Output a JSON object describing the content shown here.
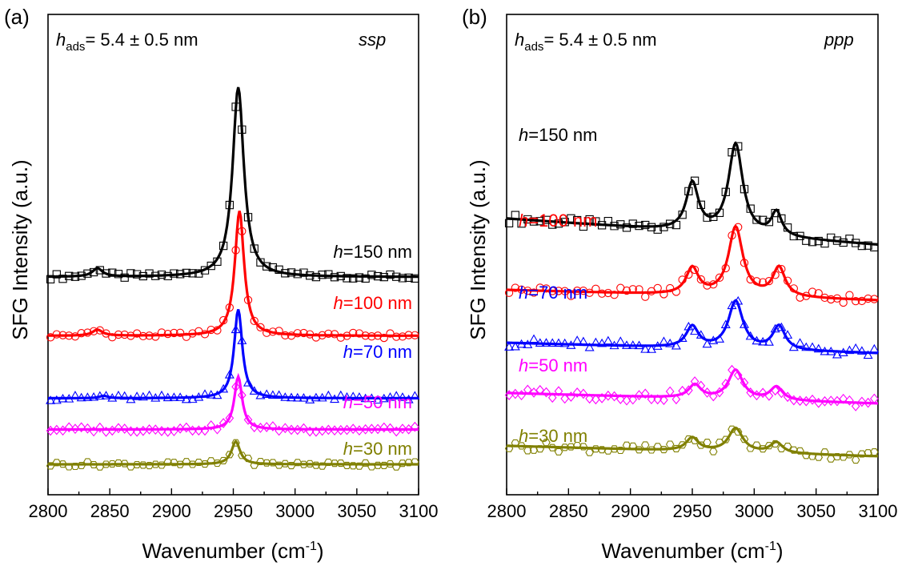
{
  "chart_data": [
    {
      "panel": "(a)",
      "type": "line",
      "polarization": "ssp",
      "annotation_prefix": "h",
      "annotation_sub": "ads",
      "annotation_value": "= 5.4 ± 0.5 nm",
      "xlabel": "Wavenumber (cm",
      "xlabel_sup": "-1",
      "xlabel_end": ")",
      "ylabel": "SFG Intensity (a.u.)",
      "xlim": [
        2800,
        3100
      ],
      "xticks": [
        "2800",
        "2850",
        "2900",
        "2950",
        "3000",
        "3050",
        "3100"
      ],
      "grid": false,
      "series": [
        {
          "name": "h=150 nm",
          "color": "#000000",
          "marker": "square",
          "offset": 7.8,
          "peaks": [
            {
              "x": 2840,
              "a": 0.35,
              "w": 5
            },
            {
              "x": 2954,
              "a": 7.9,
              "w": 5.5
            }
          ]
        },
        {
          "name": "h=100 nm",
          "color": "#ff0000",
          "marker": "circle",
          "offset": 5.35,
          "peaks": [
            {
              "x": 2840,
              "a": 0.25,
              "w": 5
            },
            {
              "x": 2955,
              "a": 5.2,
              "w": 4.5
            }
          ]
        },
        {
          "name": "h=70 nm",
          "color": "#0000ff",
          "marker": "triangle",
          "offset": 2.75,
          "peaks": [
            {
              "x": 2845,
              "a": 0.1,
              "w": 4
            },
            {
              "x": 2954,
              "a": 3.7,
              "w": 4.0
            }
          ]
        },
        {
          "name": "h=50 nm",
          "color": "#ff00ff",
          "marker": "diamond",
          "offset": 1.45,
          "peaks": [
            {
              "x": 2954,
              "a": 2.2,
              "w": 3.8
            }
          ]
        },
        {
          "name": "h=30 nm",
          "color": "#808000",
          "marker": "hexagon",
          "offset": 0.0,
          "peaks": [
            {
              "x": 2952,
              "a": 0.95,
              "w": 4.2
            }
          ]
        }
      ]
    },
    {
      "panel": "(b)",
      "type": "line",
      "polarization": "ppp",
      "annotation_prefix": "h",
      "annotation_sub": "ads",
      "annotation_value": "= 5.4 ± 0.5 nm",
      "xlabel": "Wavenumber (cm",
      "xlabel_sup": "-1",
      "xlabel_end": ")",
      "ylabel": "SFG Intensity (a.u.)",
      "xlim": [
        2800,
        3100
      ],
      "xticks": [
        "2800",
        "2850",
        "2900",
        "2950",
        "3000",
        "3050",
        "3100"
      ],
      "grid": false,
      "series": [
        {
          "name": "h=150 nm",
          "color": "#000000",
          "marker": "square",
          "offset": 8.3,
          "peaks": [
            {
              "x": 2950,
              "a": 1.8,
              "w": 6
            },
            {
              "x": 2985,
              "a": 3.4,
              "w": 7
            },
            {
              "x": 3018,
              "a": 0.9,
              "w": 5
            }
          ]
        },
        {
          "name": "h=100 nm",
          "color": "#ff0000",
          "marker": "circle",
          "offset": 6.2,
          "peaks": [
            {
              "x": 2950,
              "a": 1.0,
              "w": 6
            },
            {
              "x": 2985,
              "a": 2.6,
              "w": 7
            },
            {
              "x": 3020,
              "a": 1.1,
              "w": 6
            }
          ]
        },
        {
          "name": "h=70 nm",
          "color": "#0000ff",
          "marker": "triangle",
          "offset": 4.2,
          "peaks": [
            {
              "x": 2950,
              "a": 0.8,
              "w": 6
            },
            {
              "x": 2985,
              "a": 1.8,
              "w": 7
            },
            {
              "x": 3020,
              "a": 0.9,
              "w": 6
            }
          ]
        },
        {
          "name": "h=50 nm",
          "color": "#ff00ff",
          "marker": "diamond",
          "offset": 2.3,
          "peaks": [
            {
              "x": 2952,
              "a": 0.5,
              "w": 6
            },
            {
              "x": 2985,
              "a": 1.1,
              "w": 7
            },
            {
              "x": 3018,
              "a": 0.5,
              "w": 6
            }
          ]
        },
        {
          "name": "h=30 nm",
          "color": "#808000",
          "marker": "hexagon",
          "offset": 0.3,
          "peaks": [
            {
              "x": 2950,
              "a": 0.5,
              "w": 6
            },
            {
              "x": 2985,
              "a": 0.9,
              "w": 7
            },
            {
              "x": 3018,
              "a": 0.4,
              "w": 6
            }
          ]
        }
      ]
    }
  ]
}
